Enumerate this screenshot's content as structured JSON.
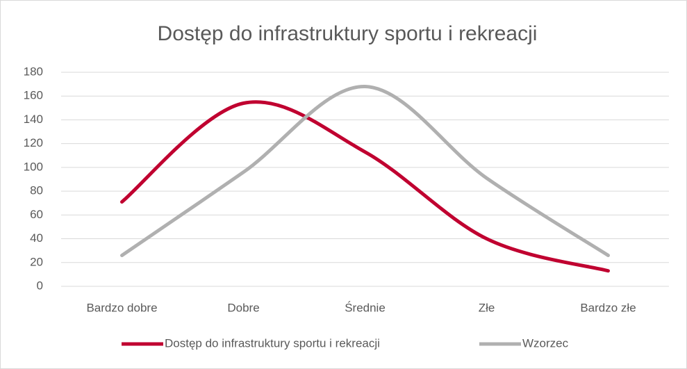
{
  "chart_data": {
    "type": "line",
    "title": "Dostęp do infrastruktury sportu i rekreacji",
    "categories": [
      "Bardzo dobre",
      "Dobre",
      "Średnie",
      "Złe",
      "Bardzo złe"
    ],
    "series": [
      {
        "name": "Dostęp do infrastruktury sportu i rekreacji",
        "color": "#c00030",
        "values": [
          71,
          154,
          113,
          40,
          13
        ]
      },
      {
        "name": "Wzorzec",
        "color": "#b0b0b0",
        "values": [
          26,
          96,
          168,
          91,
          26
        ]
      }
    ],
    "ylim": [
      0,
      180
    ],
    "yticks": [
      0,
      20,
      40,
      60,
      80,
      100,
      120,
      140,
      160,
      180
    ],
    "grid": true,
    "smooth": true,
    "legend": "bottom"
  }
}
